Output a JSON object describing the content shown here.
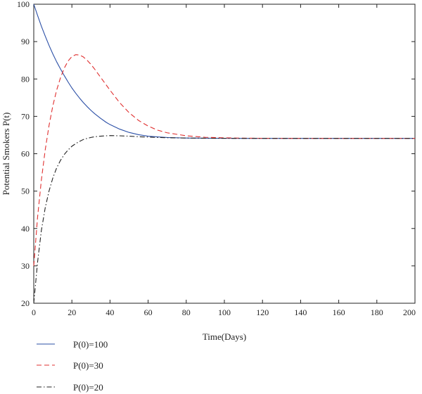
{
  "chart_data": {
    "type": "line",
    "xlabel": "Time(Days)",
    "ylabel": "Potential Smokers P(t)",
    "xlim": [
      0,
      200
    ],
    "ylim": [
      20,
      100
    ],
    "xticks": [
      0,
      20,
      40,
      60,
      80,
      100,
      120,
      140,
      160,
      180,
      200
    ],
    "yticks": [
      20,
      30,
      40,
      50,
      60,
      70,
      80,
      90,
      100
    ],
    "grid": false,
    "legend_position": "below-left",
    "x": [
      0,
      2,
      4,
      6,
      8,
      10,
      12,
      14,
      16,
      18,
      20,
      22,
      24,
      26,
      28,
      30,
      32,
      35,
      38,
      40,
      45,
      50,
      55,
      60,
      65,
      70,
      80,
      90,
      100,
      110,
      120,
      140,
      160,
      180,
      200
    ],
    "series": [
      {
        "name": "P(0)=100",
        "color": "#2b4fa6",
        "dash": "solid",
        "values": [
          100.0,
          97.0,
          94.1,
          91.5,
          89.0,
          86.7,
          84.6,
          82.7,
          80.9,
          79.2,
          77.6,
          76.2,
          74.9,
          73.7,
          72.6,
          71.6,
          70.7,
          69.5,
          68.4,
          67.8,
          66.6,
          65.7,
          65.1,
          64.7,
          64.5,
          64.35,
          64.2,
          64.15,
          64.12,
          64.1,
          64.1,
          64.1,
          64.1,
          64.1,
          64.1
        ]
      },
      {
        "name": "P(0)=30",
        "color": "#e03030",
        "dash": "dashed",
        "values": [
          30.0,
          43.0,
          53.0,
          61.0,
          67.5,
          72.8,
          77.0,
          80.3,
          82.9,
          84.8,
          86.0,
          86.5,
          86.4,
          85.9,
          85.0,
          83.9,
          82.6,
          80.5,
          78.4,
          77.0,
          73.7,
          71.0,
          68.9,
          67.4,
          66.3,
          65.6,
          64.8,
          64.4,
          64.25,
          64.17,
          64.13,
          64.1,
          64.1,
          64.1,
          64.1
        ]
      },
      {
        "name": "P(0)=20",
        "color": "#222222",
        "dash": "dashdot",
        "values": [
          20.0,
          31.0,
          39.5,
          45.5,
          50.0,
          53.5,
          56.2,
          58.2,
          59.8,
          61.0,
          62.0,
          62.7,
          63.3,
          63.8,
          64.1,
          64.35,
          64.55,
          64.7,
          64.8,
          64.85,
          64.8,
          64.7,
          64.55,
          64.45,
          64.35,
          64.28,
          64.2,
          64.15,
          64.12,
          64.1,
          64.1,
          64.1,
          64.1,
          64.1,
          64.1
        ]
      }
    ]
  }
}
